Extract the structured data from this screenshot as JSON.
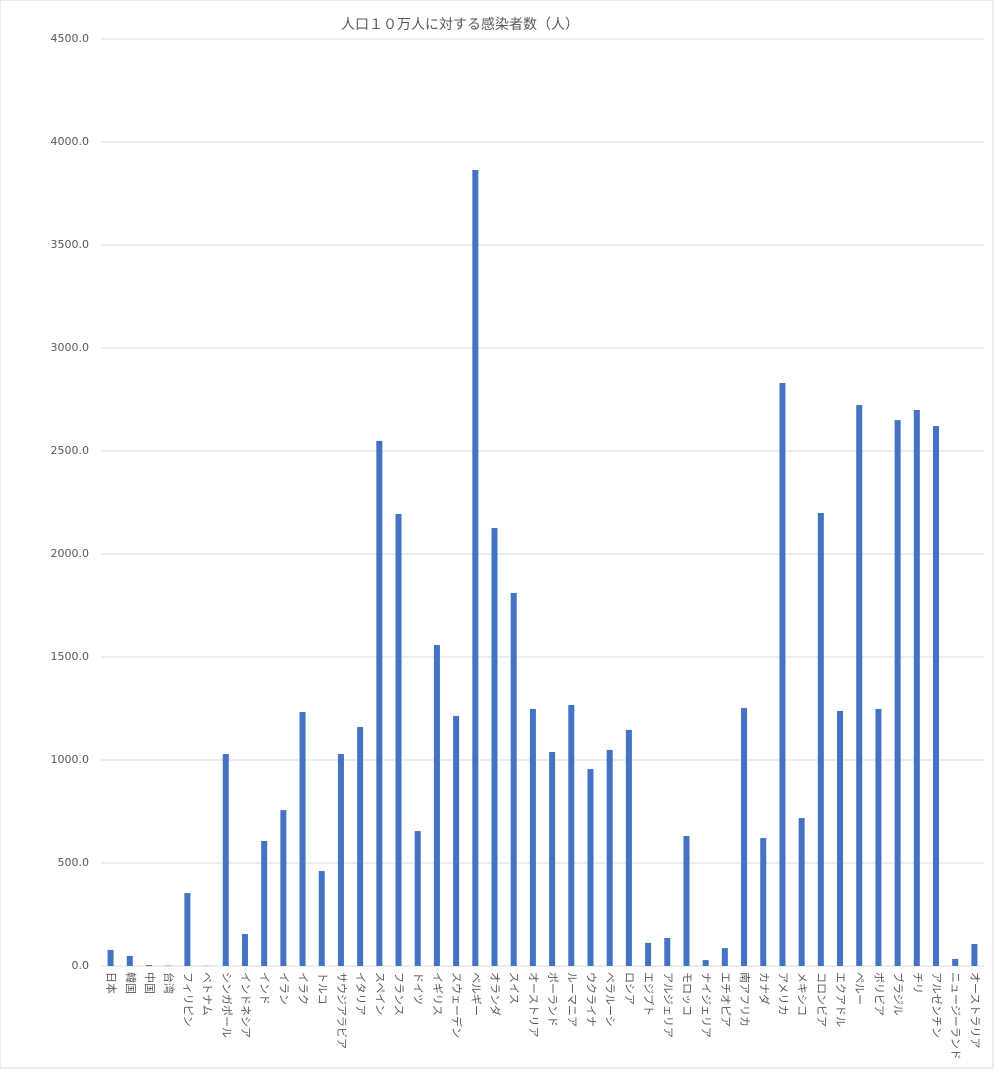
{
  "chart_data": {
    "type": "bar",
    "title": "人口１０万人に対する感染者数（人）",
    "categories": [
      "日本",
      "韓国",
      "中国",
      "台湾",
      "フィリピン",
      "ベトナム",
      "シンガポール",
      "インドネシア",
      "インド",
      "イラン",
      "イラク",
      "トルコ",
      "サウジアラビア",
      "イタリア",
      "スペイン",
      "フランス",
      "ドイツ",
      "イギリス",
      "スウェーデン",
      "ベルギー",
      "オランダ",
      "スイス",
      "オーストリア",
      "ポーランド",
      "ルーマニア",
      "ウクライナ",
      "ベラルーシ",
      "ロシア",
      "エジプト",
      "アルジェリア",
      "モロッコ",
      "ナイジェリア",
      "エチオピア",
      "南アフリカ",
      "カナダ",
      "アメリカ",
      "メキシコ",
      "コロンビア",
      "エクアドル",
      "ペルー",
      "ボリビア",
      "ブラジル",
      "チリ",
      "アルゼンチン",
      "ニュージーランド",
      "オーストラリア"
    ],
    "values": [
      78,
      49,
      5,
      2,
      354,
      1,
      1029,
      155,
      607,
      757,
      1233,
      461,
      1029,
      1160,
      2549,
      2194,
      655,
      1558,
      1214,
      3864,
      2126,
      1811,
      1248,
      1039,
      1267,
      956,
      1049,
      1146,
      112,
      136,
      631,
      29,
      87,
      1252,
      621,
      2830,
      718,
      2199,
      1238,
      2723,
      1248,
      2650,
      2699,
      2621,
      34,
      107
    ],
    "color": "#4472c4",
    "ylim": [
      0,
      4500
    ],
    "yticks": [
      {
        "value": 0,
        "label": "0.0"
      },
      {
        "value": 500,
        "label": "500.0"
      },
      {
        "value": 1000,
        "label": "1000.0"
      },
      {
        "value": 1500,
        "label": "1500.0"
      },
      {
        "value": 2000,
        "label": "2000.0"
      },
      {
        "value": 2500,
        "label": "2500.0"
      },
      {
        "value": 3000,
        "label": "3000.0"
      },
      {
        "value": 3500,
        "label": "3500.0"
      },
      {
        "value": 4000,
        "label": "4000.0"
      },
      {
        "value": 4500,
        "label": "4500.0"
      }
    ],
    "grid": true
  }
}
